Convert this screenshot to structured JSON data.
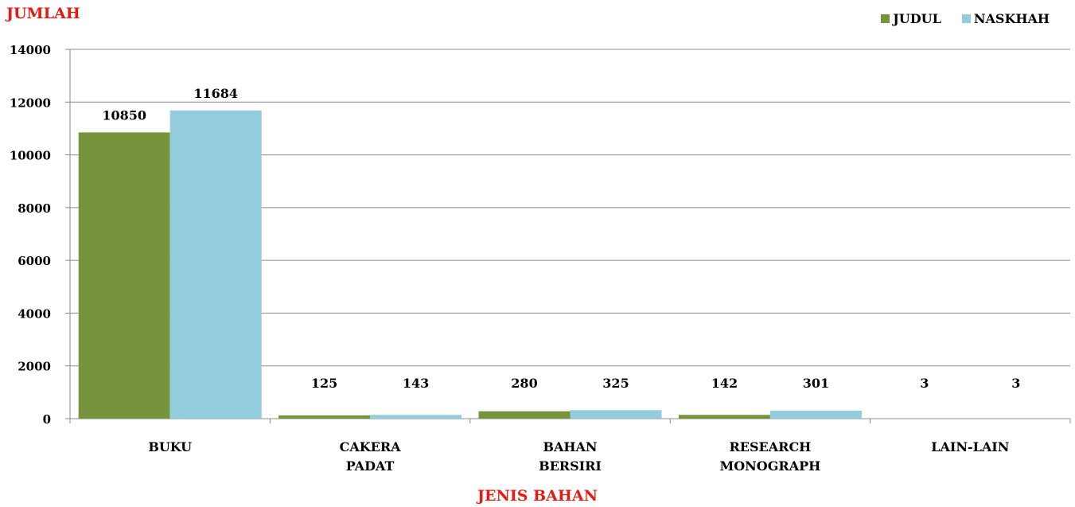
{
  "chart_data": {
    "type": "bar",
    "ylabel": "JUMLAH",
    "xlabel": "JENIS BAHAN",
    "categories": [
      [
        "BUKU"
      ],
      [
        "CAKERA",
        "PADAT"
      ],
      [
        "BAHAN",
        "BERSIRI"
      ],
      [
        "RESEARCH",
        "MONOGRAPH"
      ],
      [
        "LAIN-LAIN"
      ]
    ],
    "series": [
      {
        "name": "JUDUL",
        "color": "#77933c",
        "values": [
          10850,
          125,
          280,
          142,
          3
        ]
      },
      {
        "name": "NASKHAH",
        "color": "#93cddd",
        "values": [
          11684,
          143,
          325,
          301,
          3
        ]
      }
    ],
    "ylim": [
      0,
      14000
    ],
    "yticks": [
      0,
      2000,
      4000,
      6000,
      8000,
      10000,
      12000,
      14000
    ],
    "grid": true,
    "legend_position": "top-right",
    "data_labels": true
  }
}
